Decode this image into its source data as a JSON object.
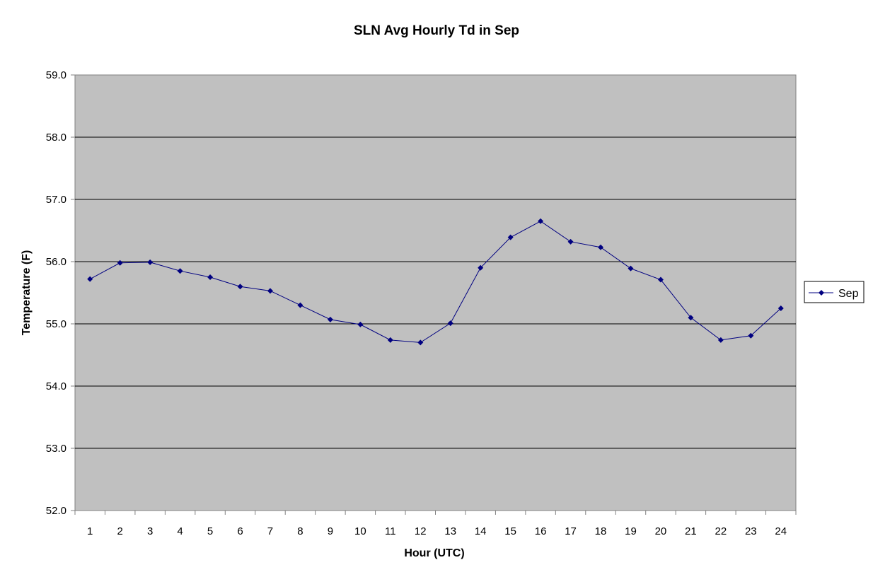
{
  "chart_data": {
    "type": "line",
    "title": "SLN Avg Hourly Td in Sep",
    "xlabel": "Hour (UTC)",
    "ylabel": "Temperature (F)",
    "ylim": [
      52.0,
      59.0
    ],
    "ytick_step": 1.0,
    "yticks": [
      "52.0",
      "53.0",
      "54.0",
      "55.0",
      "56.0",
      "57.0",
      "58.0",
      "59.0"
    ],
    "categories": [
      "1",
      "2",
      "3",
      "4",
      "5",
      "6",
      "7",
      "8",
      "9",
      "10",
      "11",
      "12",
      "13",
      "14",
      "15",
      "16",
      "17",
      "18",
      "19",
      "20",
      "21",
      "22",
      "23",
      "24"
    ],
    "grid": true,
    "legend_position": "right",
    "series": [
      {
        "name": "Sep",
        "color": "#000080",
        "values": [
          55.72,
          55.98,
          55.99,
          55.85,
          55.75,
          55.6,
          55.53,
          55.3,
          55.07,
          54.99,
          54.74,
          54.7,
          55.01,
          55.9,
          56.39,
          56.65,
          56.32,
          56.23,
          55.89,
          55.71,
          55.1,
          54.74,
          54.81,
          55.25
        ]
      }
    ],
    "colors": {
      "plot_background": "#c0c0c0",
      "gridline": "#000000",
      "axis": "#808080"
    }
  }
}
